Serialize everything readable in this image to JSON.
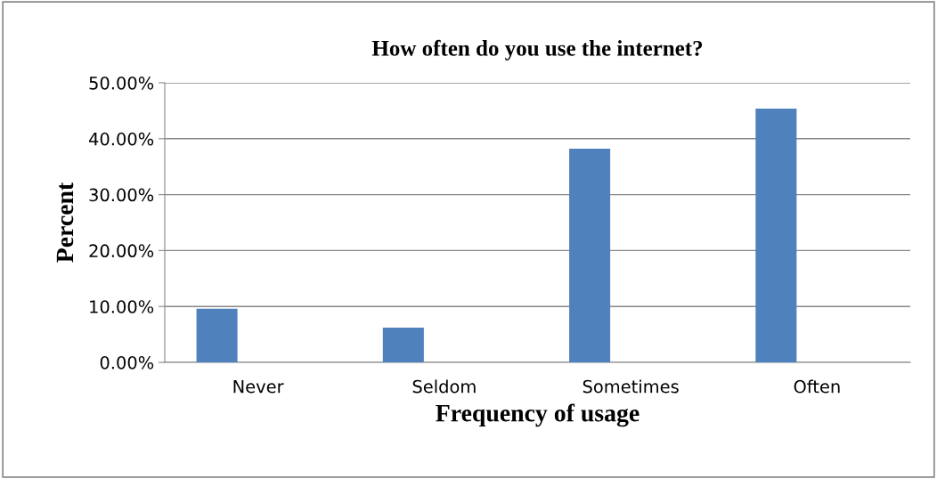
{
  "chart_data": {
    "type": "bar",
    "title": "How often do you use the internet?",
    "xlabel": "Frequency of usage",
    "ylabel": "Percent",
    "categories": [
      "Never",
      "Seldom",
      "Sometimes",
      "Often"
    ],
    "values": [
      9.6,
      6.2,
      38.2,
      45.4
    ],
    "color": "#4f81bd",
    "ylim": [
      0,
      50
    ],
    "yticks": [
      {
        "value": 0,
        "label": "0.00%"
      },
      {
        "value": 10,
        "label": "10.00%"
      },
      {
        "value": 20,
        "label": "20.00%"
      },
      {
        "value": 30,
        "label": "30.00%"
      },
      {
        "value": 40,
        "label": "40.00%"
      },
      {
        "value": 50,
        "label": "50.00%"
      }
    ],
    "grid": "y",
    "legend": false
  }
}
